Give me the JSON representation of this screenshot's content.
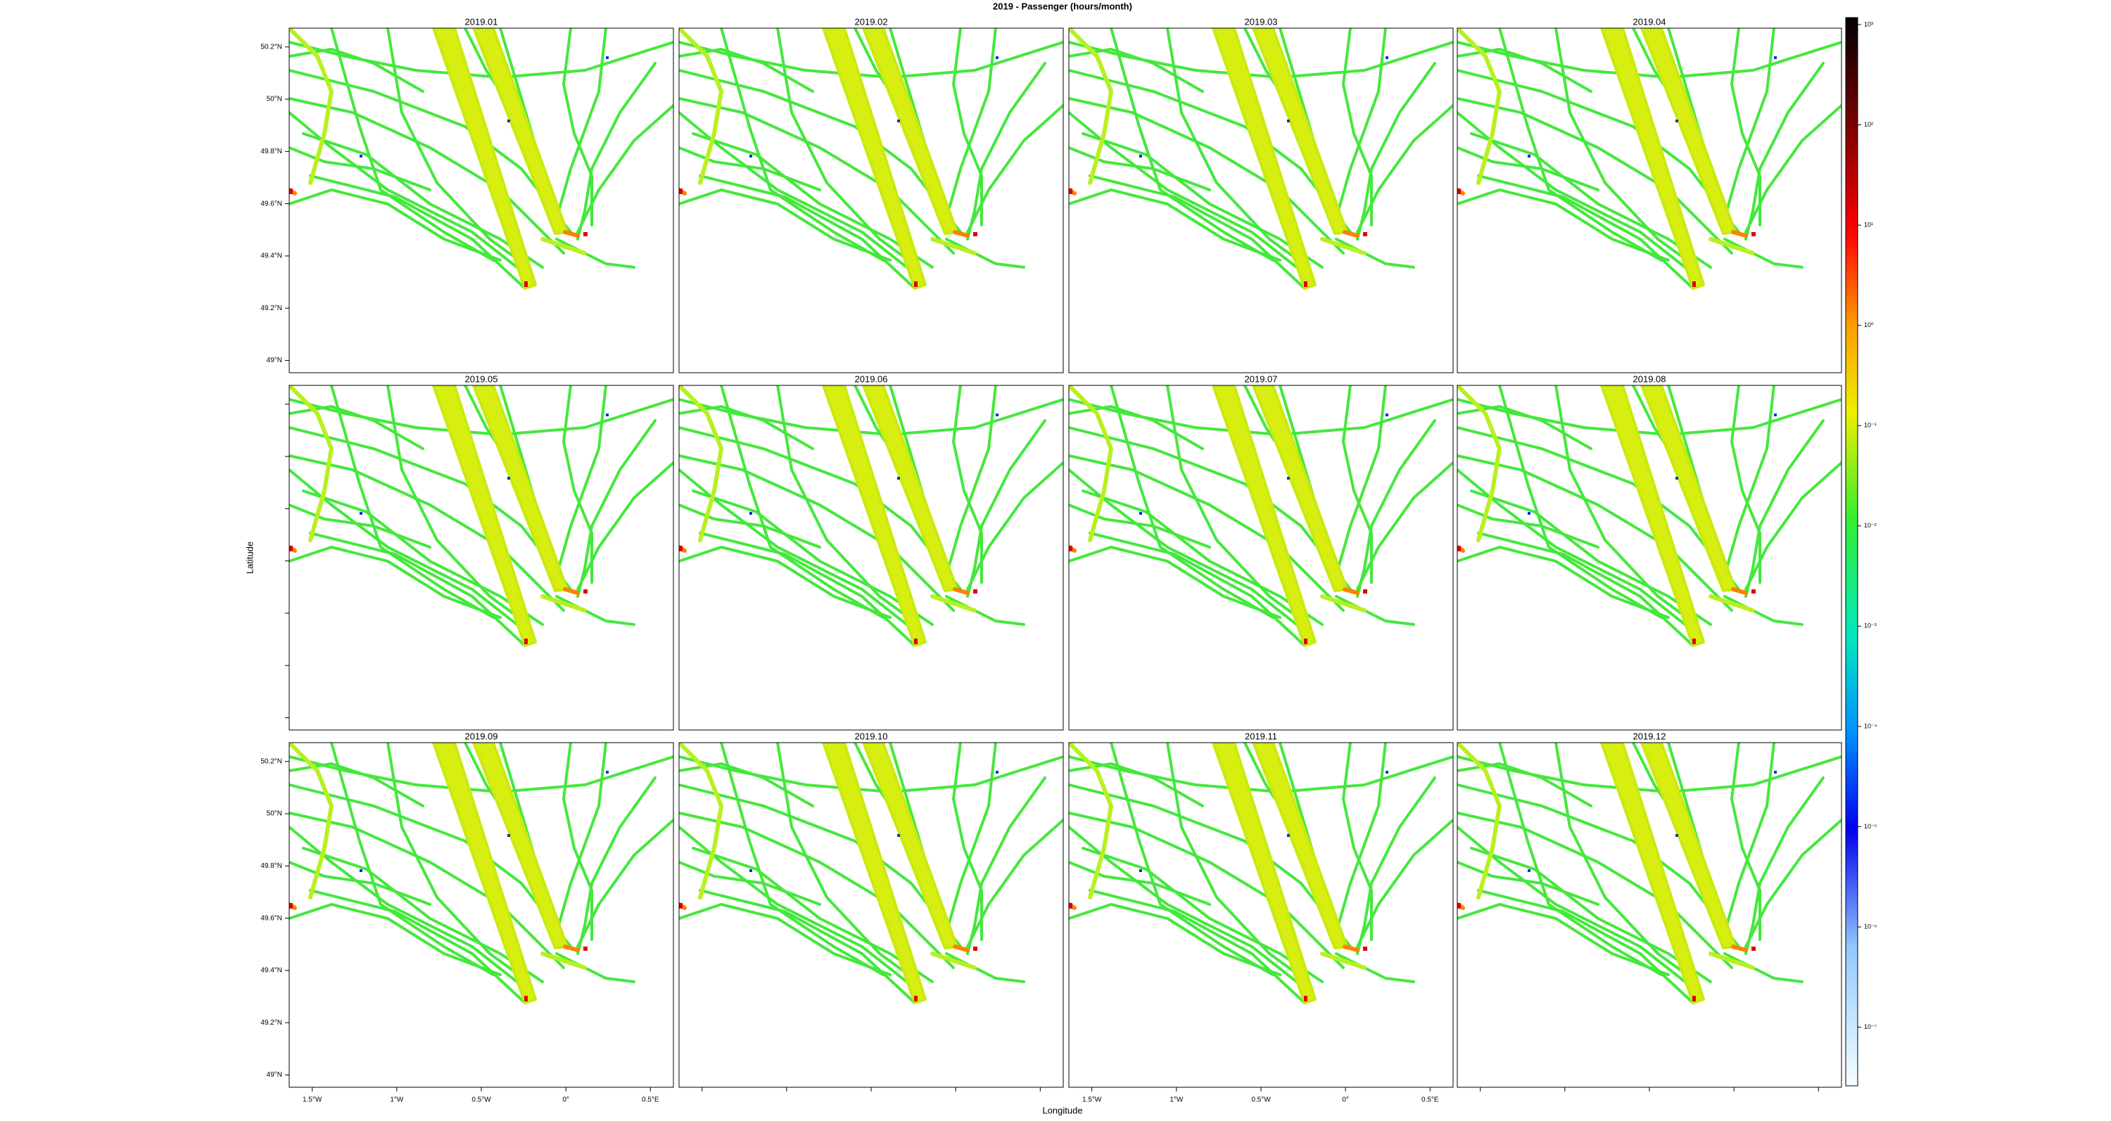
{
  "title": "2019 - Passenger (hours/month)",
  "x_label": "Longitude",
  "y_label": "Latitude",
  "panels": [
    {
      "title": "2019.01"
    },
    {
      "title": "2019.02"
    },
    {
      "title": "2019.03"
    },
    {
      "title": "2019.04"
    },
    {
      "title": "2019.05"
    },
    {
      "title": "2019.06"
    },
    {
      "title": "2019.07"
    },
    {
      "title": "2019.08"
    },
    {
      "title": "2019.09"
    },
    {
      "title": "2019.10"
    },
    {
      "title": "2019.11"
    },
    {
      "title": "2019.12"
    }
  ],
  "xlim": [
    -1.636,
    0.636
  ],
  "ylim": [
    48.953,
    50.272
  ],
  "xticks": [
    {
      "value": -1.5,
      "label": "1.5°W"
    },
    {
      "value": -1,
      "label": "1°W"
    },
    {
      "value": -0.5,
      "label": "0.5°W"
    },
    {
      "value": 0,
      "label": "0°"
    },
    {
      "value": 0.5,
      "label": "0.5°E"
    }
  ],
  "yticks": [
    {
      "value": 50.2,
      "label": "50.2°N"
    },
    {
      "value": 50,
      "label": "50°N"
    },
    {
      "value": 49.8,
      "label": "49.8°N"
    },
    {
      "value": 49.6,
      "label": "49.6°N"
    },
    {
      "value": 49.4,
      "label": "49.4°N"
    },
    {
      "value": 49.2,
      "label": "49.2°N"
    },
    {
      "value": 49,
      "label": "49°N"
    }
  ],
  "colorbar": {
    "log_scale": true,
    "lim": [
      2.6e-08,
      1175
    ],
    "ticks": [
      {
        "value": 1000,
        "label": "10³"
      },
      {
        "value": 100,
        "label": "10²"
      },
      {
        "value": 10,
        "label": "10¹"
      },
      {
        "value": 1,
        "label": "10⁰"
      },
      {
        "value": 0.1,
        "label": "10⁻¹"
      },
      {
        "value": 0.01,
        "label": "10⁻²"
      },
      {
        "value": 0.001,
        "label": "10⁻³"
      },
      {
        "value": 0.0001,
        "label": "10⁻⁴"
      },
      {
        "value": 1e-05,
        "label": "10⁻⁵"
      },
      {
        "value": 1e-06,
        "label": "10⁻⁶"
      },
      {
        "value": 1e-07,
        "label": "10⁻⁷"
      }
    ]
  }
}
